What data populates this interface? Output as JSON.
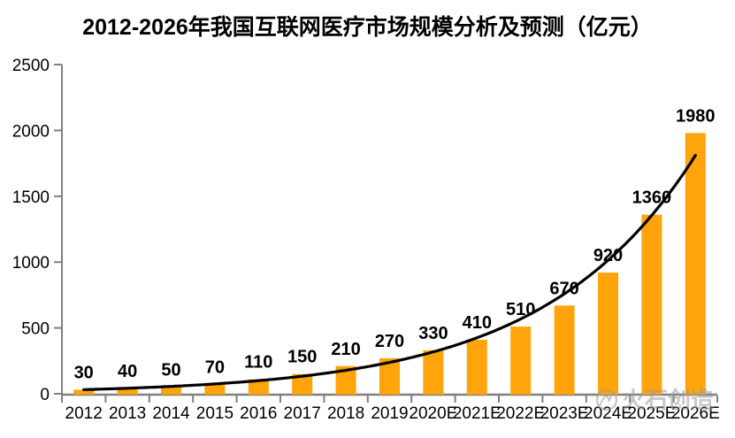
{
  "title": "2012-2026年我国互联网医疗市场规模分析及预测（亿元）",
  "watermark": {
    "logo_icon": "huoshi-logo-icon",
    "text": "火石创造"
  },
  "colors": {
    "bar": "#FFA40A",
    "trendline": "#000000",
    "axis": "#808080",
    "text": "#000000",
    "watermark": "#989CA1",
    "background": "#FFFFFF"
  },
  "chart_data": {
    "type": "bar",
    "title": "2012-2026年我国互联网医疗市场规模分析及预测（亿元）",
    "unit": "亿元",
    "categories": [
      "2012",
      "2013",
      "2014",
      "2015",
      "2016",
      "2017",
      "2018",
      "2019",
      "2020E",
      "2021E",
      "2022E",
      "2023E",
      "2024E",
      "2025E",
      "2026E"
    ],
    "values": [
      30,
      40,
      50,
      70,
      110,
      150,
      210,
      270,
      330,
      410,
      510,
      670,
      920,
      1360,
      1980
    ],
    "data_labels": true,
    "xlabel": "",
    "ylabel": "",
    "ylim": [
      0,
      2500
    ],
    "yticks": [
      0,
      500,
      1000,
      1500,
      2000,
      2500
    ],
    "grid": false,
    "legend": "none",
    "trendline": {
      "type": "exponential",
      "color": "#000000"
    }
  }
}
